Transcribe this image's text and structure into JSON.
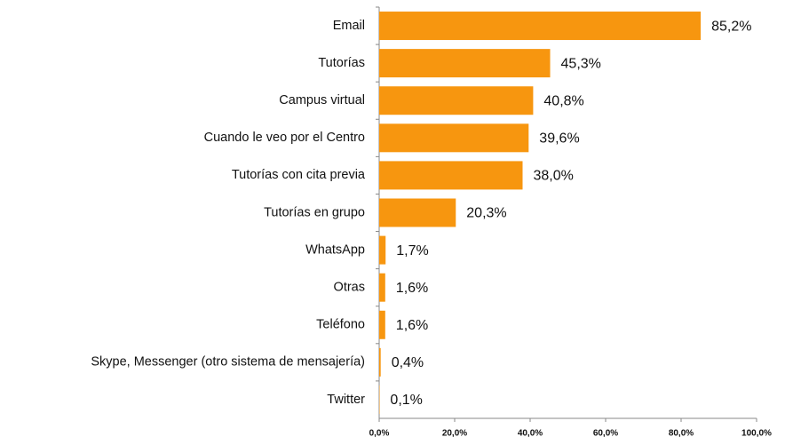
{
  "chart_data": {
    "type": "bar",
    "orientation": "horizontal",
    "categories": [
      "Email",
      "Tutorías",
      "Campus virtual",
      "Cuando le veo por el Centro",
      "Tutorías con cita previa",
      "Tutorías en grupo",
      "WhatsApp",
      "Otras",
      "Teléfono",
      "Skype, Messenger (otro sistema de mensajería)",
      "Twitter"
    ],
    "values": [
      85.2,
      45.3,
      40.8,
      39.6,
      38.0,
      20.3,
      1.7,
      1.6,
      1.6,
      0.4,
      0.1
    ],
    "value_labels": [
      "85,2%",
      "45,3%",
      "40,8%",
      "39,6%",
      "38,0%",
      "20,3%",
      "1,7%",
      "1,6%",
      "1,6%",
      "0,4%",
      "0,1%"
    ],
    "color": "#f7960f",
    "xlim": [
      0,
      100
    ],
    "xticks": [
      {
        "value": 0,
        "label": "0,0%"
      },
      {
        "value": 20,
        "label": "20,0%"
      },
      {
        "value": 40,
        "label": "40,0%"
      },
      {
        "value": 60,
        "label": "60,0%"
      },
      {
        "value": 80,
        "label": "80,0%"
      },
      {
        "value": 100,
        "label": "100,0%"
      }
    ]
  }
}
